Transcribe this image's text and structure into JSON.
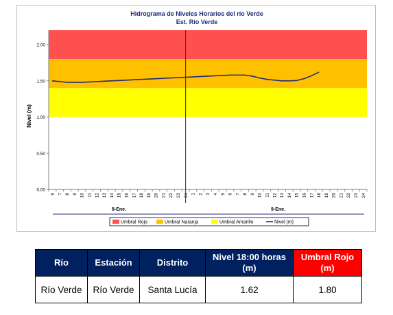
{
  "chart_data": {
    "type": "line",
    "title": "Hidrograma de Niveles Horarios del río Verde",
    "subtitle": "Est. Río Verde",
    "ylabel": "Nivel (m)",
    "xlabel": "",
    "ylim": [
      0,
      2.2
    ],
    "yticks": [
      "0.00",
      "0.50",
      "1.00",
      "1.50",
      "2.00"
    ],
    "ytick_values": [
      0,
      0.5,
      1.0,
      1.5,
      2.0
    ],
    "x_hour_labels": [
      "6",
      "7",
      "8",
      "9",
      "10",
      "11",
      "12",
      "13",
      "14",
      "15",
      "16",
      "17",
      "18",
      "19",
      "20",
      "21",
      "22",
      "23",
      "24",
      "1",
      "2",
      "3",
      "4",
      "5",
      "6",
      "7",
      "8",
      "9",
      "10",
      "11",
      "12",
      "13",
      "14",
      "15",
      "16",
      "17",
      "18",
      "19",
      "20",
      "21",
      "22",
      "23",
      "24"
    ],
    "day_labels": [
      "8-Ene.",
      "9-Ene."
    ],
    "thresholds": [
      {
        "name": "Umbral Rojo",
        "from": 1.8,
        "to": 2.2,
        "color": "#ff5050"
      },
      {
        "name": "Umbral Naranja",
        "from": 1.4,
        "to": 1.8,
        "color": "#ffc000"
      },
      {
        "name": "Umbral Amarillo",
        "from": 1.0,
        "to": 1.4,
        "color": "#ffff00"
      }
    ],
    "series": [
      {
        "name": "Nivel (m)",
        "color": "#1f2a7a",
        "values": [
          1.5,
          1.49,
          1.48,
          1.48,
          1.48,
          1.485,
          1.49,
          1.495,
          1.5,
          1.505,
          1.51,
          1.515,
          1.52,
          1.525,
          1.53,
          1.535,
          1.54,
          1.545,
          1.55,
          1.555,
          1.56,
          1.565,
          1.57,
          1.575,
          1.58,
          1.58,
          1.58,
          1.565,
          1.54,
          1.52,
          1.51,
          1.5,
          1.5,
          1.505,
          1.53,
          1.57,
          1.62
        ]
      }
    ],
    "marker_day_break": true,
    "grid": false,
    "legend": {
      "placement": "bottom",
      "entries": [
        "Umbral Rojo",
        "Umbral Naranja",
        "Umbral Amarillo",
        "Nivel (m)"
      ]
    }
  },
  "table": {
    "headers": [
      "Río",
      "Estación",
      "Distrito",
      "Nivel  18:00 horas (m)",
      "Umbral Rojo (m)"
    ],
    "rows": [
      [
        "Río Verde",
        "Río Verde",
        "Santa Lucía",
        "1.62",
        "1.80"
      ]
    ]
  }
}
